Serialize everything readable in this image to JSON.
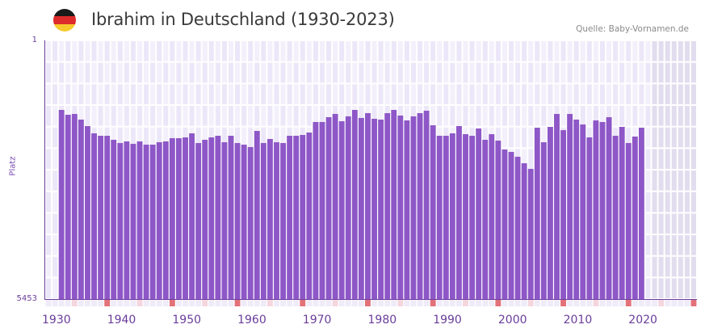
{
  "header": {
    "title": "Ibrahim in Deutschland (1930-2023)",
    "source": "Quelle: Baby-Vornamen.de",
    "flag_colors": [
      "#1a1a1a",
      "#dd2a2a",
      "#f6c92d"
    ]
  },
  "colors": {
    "bar": "#8e57c7",
    "axis": "#6a3d9a",
    "grid_cell_light": "#f3f0fb",
    "grid_cell_dark": "#ece7f8",
    "future_cell": "#e2ddee",
    "decade_marker": "#e3717a",
    "half_decade_marker": "#f5d6de",
    "strip_cell": "#efebf8"
  },
  "axes": {
    "y_top_label": "1",
    "y_bottom_label": "5453",
    "y_title": "Platz",
    "x_ticks": [
      "1930",
      "1940",
      "1950",
      "1960",
      "1970",
      "1980",
      "1990",
      "2000",
      "2010",
      "2020"
    ]
  },
  "chart_data": {
    "type": "bar",
    "title": "Ibrahim in Deutschland (1930-2023)",
    "xlabel": "",
    "ylabel": "Platz",
    "y_inverted": true,
    "ylim": [
      1,
      5453
    ],
    "xlim": [
      1930,
      2029
    ],
    "grid": true,
    "legend": null,
    "annotations": [
      "Quelle: Baby-Vornamen.de"
    ],
    "x": [
      1932,
      1933,
      1934,
      1935,
      1936,
      1937,
      1938,
      1939,
      1940,
      1941,
      1942,
      1943,
      1944,
      1945,
      1946,
      1947,
      1948,
      1949,
      1950,
      1951,
      1952,
      1953,
      1954,
      1955,
      1956,
      1957,
      1958,
      1959,
      1960,
      1961,
      1962,
      1963,
      1964,
      1965,
      1966,
      1967,
      1968,
      1969,
      1970,
      1971,
      1972,
      1973,
      1974,
      1975,
      1976,
      1977,
      1978,
      1979,
      1980,
      1981,
      1982,
      1983,
      1984,
      1985,
      1986,
      1987,
      1988,
      1989,
      1990,
      1991,
      1992,
      1993,
      1994,
      1995,
      1996,
      1997,
      1998,
      1999,
      2000,
      2001,
      2002,
      2003,
      2004,
      2005,
      2006,
      2007,
      2008,
      2009,
      2010,
      2011,
      2012,
      2013,
      2014,
      2015,
      2016,
      2017,
      2018,
      2019,
      2020,
      2021
    ],
    "values": [
      1466,
      1568,
      1551,
      1670,
      1807,
      1960,
      2011,
      2011,
      2096,
      2164,
      2130,
      2181,
      2130,
      2198,
      2198,
      2147,
      2130,
      2062,
      2062,
      2045,
      1960,
      2164,
      2096,
      2045,
      2011,
      2147,
      2011,
      2164,
      2198,
      2249,
      1909,
      2164,
      2079,
      2147,
      2164,
      2011,
      2011,
      1994,
      1943,
      1721,
      1721,
      1619,
      1551,
      1704,
      1602,
      1466,
      1636,
      1534,
      1653,
      1670,
      1534,
      1466,
      1585,
      1687,
      1602,
      1534,
      1483,
      1790,
      2011,
      2011,
      1960,
      1807,
      1977,
      2011,
      1858,
      2096,
      1977,
      2113,
      2300,
      2351,
      2453,
      2590,
      2709,
      1841,
      2147,
      1824,
      1551,
      1892,
      1551,
      1670,
      1773,
      2045,
      1687,
      1721,
      1619,
      2011,
      1824,
      2164,
      2028,
      1841
    ]
  }
}
